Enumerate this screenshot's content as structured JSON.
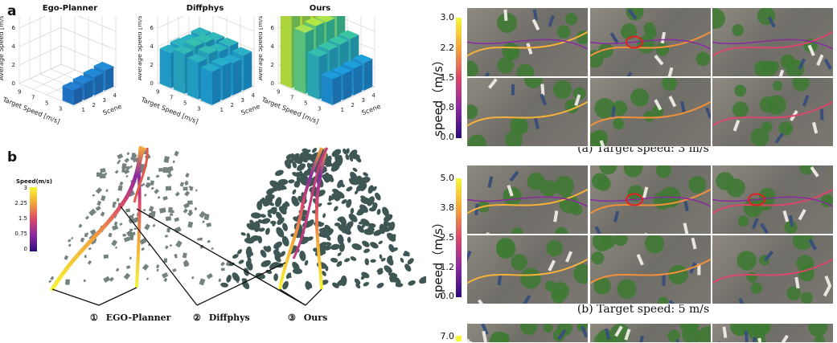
{
  "panel_a": {
    "letter": "a",
    "charts": [
      {
        "title": "Ego-Planner"
      },
      {
        "title": "Diffphys"
      },
      {
        "title": "Ours"
      }
    ],
    "z_label": "Average Speed [m/s]",
    "x_label": "Target Speed [m/s]",
    "y_label": "Scene",
    "z_ticks": [
      "0",
      "2",
      "4",
      "6",
      "8"
    ],
    "x_ticks": [
      "9",
      "7",
      "5",
      "3"
    ],
    "y_ticks": [
      "1",
      "2",
      "3",
      "4"
    ]
  },
  "panel_b": {
    "letter": "b",
    "colorbar_title": "Speed(m/s)",
    "colorbar_ticks": [
      "3",
      "2.25",
      "1.5",
      "0.75",
      "0"
    ],
    "legend": [
      {
        "num": "①",
        "label": "EGO-Planner"
      },
      {
        "num": "②",
        "label": "Diffphys"
      },
      {
        "num": "③",
        "label": "Ours"
      }
    ]
  },
  "speed_rows": [
    {
      "ylabel": "speed（m/s）",
      "ticks": [
        "3.0",
        "2.2",
        "1.5",
        "0.8",
        "0.0"
      ],
      "caption": "(a) Target speed: 3 m/s"
    },
    {
      "ylabel": "speed（m/s）",
      "ticks": [
        "5.0",
        "3.8",
        "2.5",
        "1.2",
        "0.0"
      ],
      "caption": "(b) Target speed: 5 m/s"
    },
    {
      "ticks": [
        "7.0"
      ]
    }
  ],
  "chart_data": [
    {
      "type": "bar3d",
      "title": "Ego-Planner",
      "x_categories": [
        "1",
        "2",
        "3",
        "4"
      ],
      "zlim": [
        0,
        8
      ],
      "values": [
        [
          1.6,
          1.8,
          2.0,
          2.2
        ]
      ]
    },
    {
      "type": "bar3d",
      "title": "Diffphys",
      "x_categories": [
        "1",
        "2",
        "3",
        "4"
      ],
      "zlim": [
        0,
        8
      ],
      "values": [
        [
          3.6,
          3.7,
          3.5,
          3.8
        ],
        [
          4.0,
          4.4,
          4.1,
          4.2
        ],
        [
          4.3,
          4.6,
          4.5,
          4.2
        ],
        [
          3.8,
          4.0,
          3.9,
          4.1
        ]
      ]
    },
    {
      "type": "bar3d",
      "title": "Ours",
      "x_categories": [
        "1",
        "2",
        "3",
        "4"
      ],
      "zlim": [
        0,
        8
      ],
      "values": [
        [
          2.8,
          2.8,
          2.9,
          3.0
        ],
        [
          4.6,
          4.8,
          4.9,
          5.0
        ],
        [
          6.6,
          6.8,
          6.7,
          6.9
        ],
        [
          8.2,
          8.6,
          8.9,
          8.4
        ]
      ]
    }
  ]
}
